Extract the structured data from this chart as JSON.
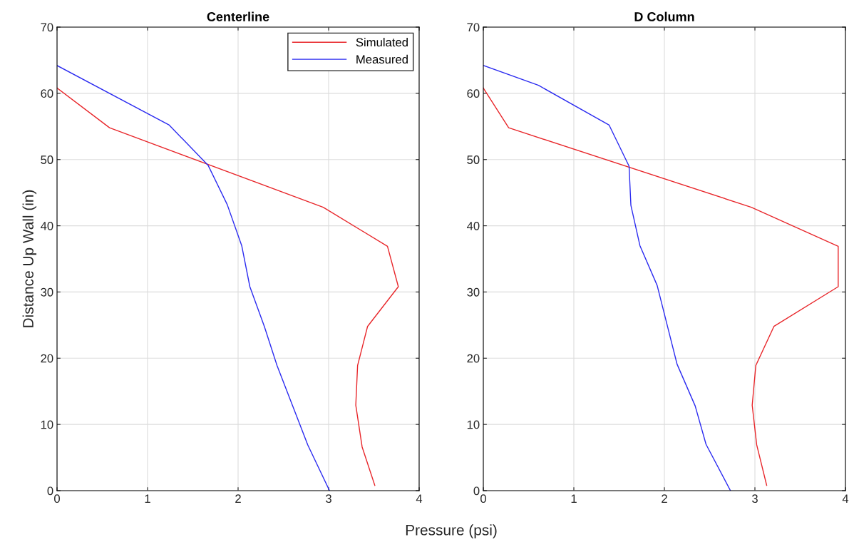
{
  "chart_data": [
    {
      "type": "line",
      "title": "Centerline",
      "xlabel": "Pressure (psi)",
      "ylabel": "Distance Up Wall (in)",
      "xlim": [
        0,
        4
      ],
      "xticks": [
        0,
        1,
        2,
        3,
        4
      ],
      "ylim": [
        0,
        70
      ],
      "yticks": [
        0,
        10,
        20,
        30,
        40,
        50,
        60,
        70
      ],
      "grid": true,
      "legend": "top right",
      "series": [
        {
          "name": "Simulated",
          "color": "#e8262a",
          "x": [
            3.51,
            3.37,
            3.3,
            3.32,
            3.43,
            3.77,
            3.65,
            2.94,
            0.58,
            0
          ],
          "values": [
            0.8,
            6.6,
            12.9,
            18.9,
            24.8,
            30.8,
            36.9,
            42.8,
            54.8,
            60.8
          ]
        },
        {
          "name": "Measured",
          "color": "#2b2bf0",
          "x": [
            3.01,
            2.77,
            2.6,
            2.43,
            2.29,
            2.13,
            2.04,
            1.88,
            1.67,
            1.24,
            0
          ],
          "values": [
            0,
            6.9,
            12.9,
            18.9,
            24.8,
            30.8,
            37,
            43.2,
            49.1,
            55.2,
            64.2
          ]
        }
      ]
    },
    {
      "type": "line",
      "title": "D Column",
      "xlim": [
        0,
        4
      ],
      "xticks": [
        0,
        1,
        2,
        3,
        4
      ],
      "ylim": [
        0,
        70
      ],
      "yticks": [
        0,
        10,
        20,
        30,
        40,
        50,
        60,
        70
      ],
      "grid": true,
      "series": [
        {
          "color": "#e8262a",
          "x": [
            3.13,
            3.02,
            2.97,
            3.01,
            3.21,
            3.92,
            3.92,
            2.96,
            0.28,
            0
          ],
          "values": [
            0.8,
            6.9,
            12.9,
            18.9,
            24.8,
            30.8,
            36.9,
            42.8,
            54.8,
            60.8
          ]
        },
        {
          "color": "#2b2bf0",
          "x": [
            2.73,
            2.46,
            2.34,
            2.14,
            1.92,
            1.73,
            1.63,
            1.61,
            1.39,
            0.61,
            0
          ],
          "values": [
            0,
            7.0,
            12.8,
            19.1,
            31.0,
            37.0,
            43.1,
            49.0,
            55.2,
            61.2,
            64.2
          ]
        }
      ]
    }
  ]
}
